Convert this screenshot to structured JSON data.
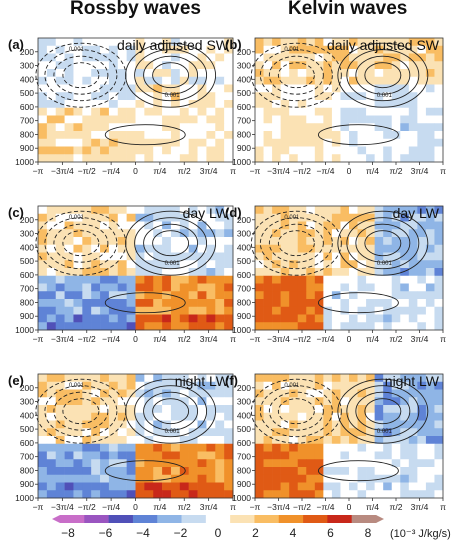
{
  "figure": {
    "column_titles": [
      "Rossby waves",
      "Kelvin waves"
    ]
  },
  "chart_data": [
    {
      "type": "heatmap",
      "panel": "(a)",
      "title": "daily adjusted SW",
      "wave": "Rossby waves",
      "x_ticks": [
        "−π",
        "−3π/4",
        "−π/2",
        "−π/4",
        "0",
        "π/4",
        "π/2",
        "3π/4",
        "π"
      ],
      "y_ticks": [
        "200",
        "300",
        "400",
        "500",
        "600",
        "700",
        "800",
        "900",
        "1000"
      ],
      "x_range": [
        -3.1416,
        3.1416
      ],
      "y_range_hPa": [
        100,
        1000
      ],
      "contour_label": "0.001",
      "approx_values": [
        {
          "x": -2.4,
          "p": 800,
          "value": 1.0
        },
        {
          "x": 0.5,
          "p": 650,
          "value": 0.8
        },
        {
          "x": 1.6,
          "p": 300,
          "value": 0.5
        },
        {
          "x": -1.5,
          "p": 350,
          "value": -0.6
        }
      ]
    },
    {
      "type": "heatmap",
      "panel": "(b)",
      "title": "daily adjusted SW",
      "wave": "Kelvin waves",
      "x_ticks": [
        "−π",
        "−3π/4",
        "−π/2",
        "−π/4",
        "0",
        "π/4",
        "π/2",
        "3π/4",
        "π"
      ],
      "y_ticks": [
        "200",
        "300",
        "400",
        "500",
        "600",
        "700",
        "800",
        "900",
        "1000"
      ],
      "x_range": [
        -3.1416,
        3.1416
      ],
      "y_range_hPa": [
        100,
        1000
      ],
      "contour_label": "0.001",
      "approx_values": [
        {
          "x": -1.0,
          "p": 300,
          "value": 1.2
        },
        {
          "x": 1.2,
          "p": 750,
          "value": -0.8
        },
        {
          "x": -2.2,
          "p": 700,
          "value": -0.5
        }
      ]
    },
    {
      "type": "heatmap",
      "panel": "(c)",
      "title": "day LW",
      "wave": "Rossby waves",
      "x_ticks": [
        "−π",
        "−3π/4",
        "−π/2",
        "−π/4",
        "0",
        "π/4",
        "π/2",
        "3π/4",
        "π"
      ],
      "y_ticks": [
        "200",
        "300",
        "400",
        "500",
        "600",
        "700",
        "800",
        "900",
        "1000"
      ],
      "x_range": [
        -3.1416,
        3.1416
      ],
      "y_range_hPa": [
        100,
        1000
      ],
      "contour_label": "0.001",
      "approx_values": [
        {
          "x": -2.0,
          "p": 800,
          "value": -2.0
        },
        {
          "x": 1.6,
          "p": 800,
          "value": 4.0
        },
        {
          "x": -2.2,
          "p": 250,
          "value": 2.0
        }
      ]
    },
    {
      "type": "heatmap",
      "panel": "(d)",
      "title": "day LW",
      "wave": "Kelvin waves",
      "x_ticks": [
        "−π",
        "−3π/4",
        "−π/2",
        "−π/4",
        "0",
        "π/4",
        "π/2",
        "3π/4",
        "π"
      ],
      "y_ticks": [
        "200",
        "300",
        "400",
        "500",
        "600",
        "700",
        "800",
        "900",
        "1000"
      ],
      "x_range": [
        -3.1416,
        3.1416
      ],
      "y_range_hPa": [
        100,
        1000
      ],
      "contour_label": "0.001",
      "approx_values": [
        {
          "x": -2.4,
          "p": 800,
          "value": 5.0
        },
        {
          "x": -0.6,
          "p": 250,
          "value": 2.0
        },
        {
          "x": 1.8,
          "p": 300,
          "value": -2.0
        }
      ]
    },
    {
      "type": "heatmap",
      "panel": "(e)",
      "title": "night LW",
      "wave": "Rossby waves",
      "x_ticks": [
        "−π",
        "−3π/4",
        "−π/2",
        "−π/4",
        "0",
        "π/4",
        "π/2",
        "3π/4",
        "π"
      ],
      "y_ticks": [
        "200",
        "300",
        "400",
        "500",
        "600",
        "700",
        "800",
        "900",
        "1000"
      ],
      "x_range": [
        -3.1416,
        3.1416
      ],
      "y_range_hPa": [
        100,
        1000
      ],
      "contour_label": "0.001",
      "approx_values": [
        {
          "x": -2.0,
          "p": 800,
          "value": -2.0
        },
        {
          "x": 1.6,
          "p": 800,
          "value": 3.0
        }
      ]
    },
    {
      "type": "heatmap",
      "panel": "(f)",
      "title": "night LW",
      "wave": "Kelvin waves",
      "x_ticks": [
        "−π",
        "−3π/4",
        "−π/2",
        "−π/4",
        "0",
        "π/4",
        "π/2",
        "3π/4",
        "π"
      ],
      "y_ticks": [
        "200",
        "300",
        "400",
        "500",
        "600",
        "700",
        "800",
        "900",
        "1000"
      ],
      "x_range": [
        -3.1416,
        3.1416
      ],
      "y_range_hPa": [
        100,
        1000
      ],
      "contour_label": "0.001",
      "approx_values": [
        {
          "x": -2.4,
          "p": 800,
          "value": 4.0
        },
        {
          "x": -0.6,
          "p": 250,
          "value": 2.0
        },
        {
          "x": 1.8,
          "p": 300,
          "value": -2.0
        }
      ]
    }
  ],
  "colorbar": {
    "ticks": [
      "−8",
      "−6",
      "−4",
      "−2",
      "0",
      "2",
      "4",
      "6",
      "8"
    ],
    "range": [
      -8,
      8
    ],
    "unit_label": "(10⁻³ J/kg/s)",
    "colors": [
      "#c86ec8",
      "#9a55c0",
      "#5050b8",
      "#5f83d6",
      "#8fb5e6",
      "#c7dbf0",
      "#ffffff",
      "#fbe2b4",
      "#f9bd63",
      "#f0912a",
      "#e05a15",
      "#c8281a",
      "#b88a80"
    ]
  }
}
